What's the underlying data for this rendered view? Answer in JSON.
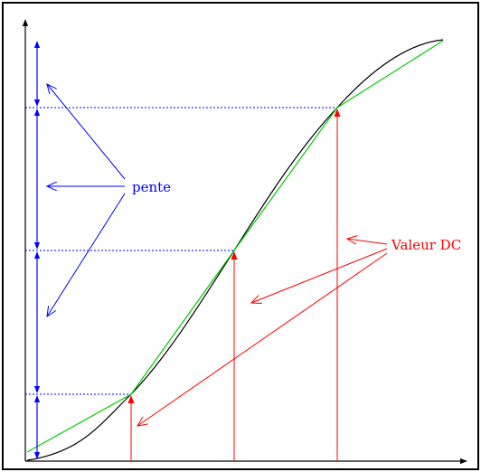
{
  "labels": {
    "pente": "pente",
    "valeur_dc": "Valeur DC"
  },
  "colors": {
    "frame": "#000000",
    "curve": "#000000",
    "approximation": "#00cc00",
    "pente": "#0000ff",
    "valeur_dc": "#ff0000",
    "dotted": "#0000ff"
  }
}
